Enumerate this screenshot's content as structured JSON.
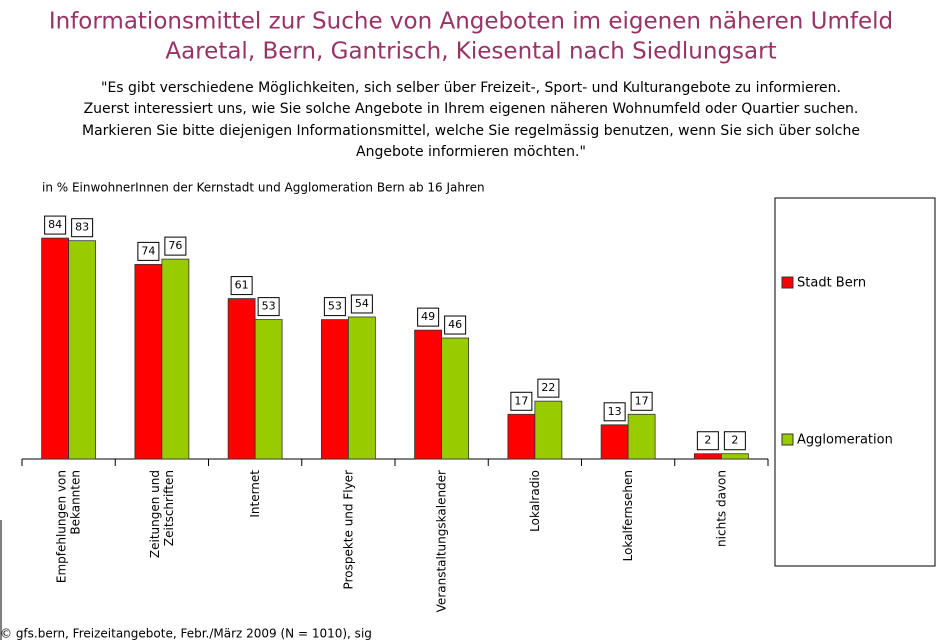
{
  "chart_data": {
    "type": "bar",
    "title": [
      "Informationsmittel zur Suche von Angeboten im eigenen näheren Umfeld",
      "Aaretal, Bern, Gantrisch, Kiesental nach Siedlungsart"
    ],
    "subtitle": [
      "\"Es gibt verschiedene Möglichkeiten, sich selber über Freizeit-, Sport- und Kulturangebote zu informieren.",
      "Zuerst interessiert uns, wie Sie solche Angebote in Ihrem eigenen näheren Wohnumfeld oder Quartier suchen.",
      "Markieren Sie bitte diejenigen Informationsmittel, welche Sie regelmässig benutzen, wenn Sie sich über solche",
      "Angebote informieren möchten.\""
    ],
    "y_label": "in % EinwohnerInnen der Kernstadt und Agglomeration Bern ab 16 Jahren",
    "categories": [
      "Empfehlungen von\nBekannten",
      "Zeitungen und\nZeitschriften",
      "Internet",
      "Prospekte und Flyer",
      "Veranstaltungskalender",
      "Lokalradio",
      "Lokalfernsehen",
      "nichts davon"
    ],
    "series": [
      {
        "name": "Stadt Bern",
        "color": "#ff0000",
        "values": [
          84,
          74,
          61,
          53,
          49,
          17,
          13,
          2
        ]
      },
      {
        "name": "Agglomeration",
        "color": "#99cc00",
        "values": [
          83,
          76,
          53,
          54,
          46,
          22,
          17,
          2
        ]
      }
    ],
    "ylim": [
      0,
      100
    ],
    "footer": "© gfs.bern, Freizeitangebote, Febr./März 2009 (N = 1010), sig"
  }
}
